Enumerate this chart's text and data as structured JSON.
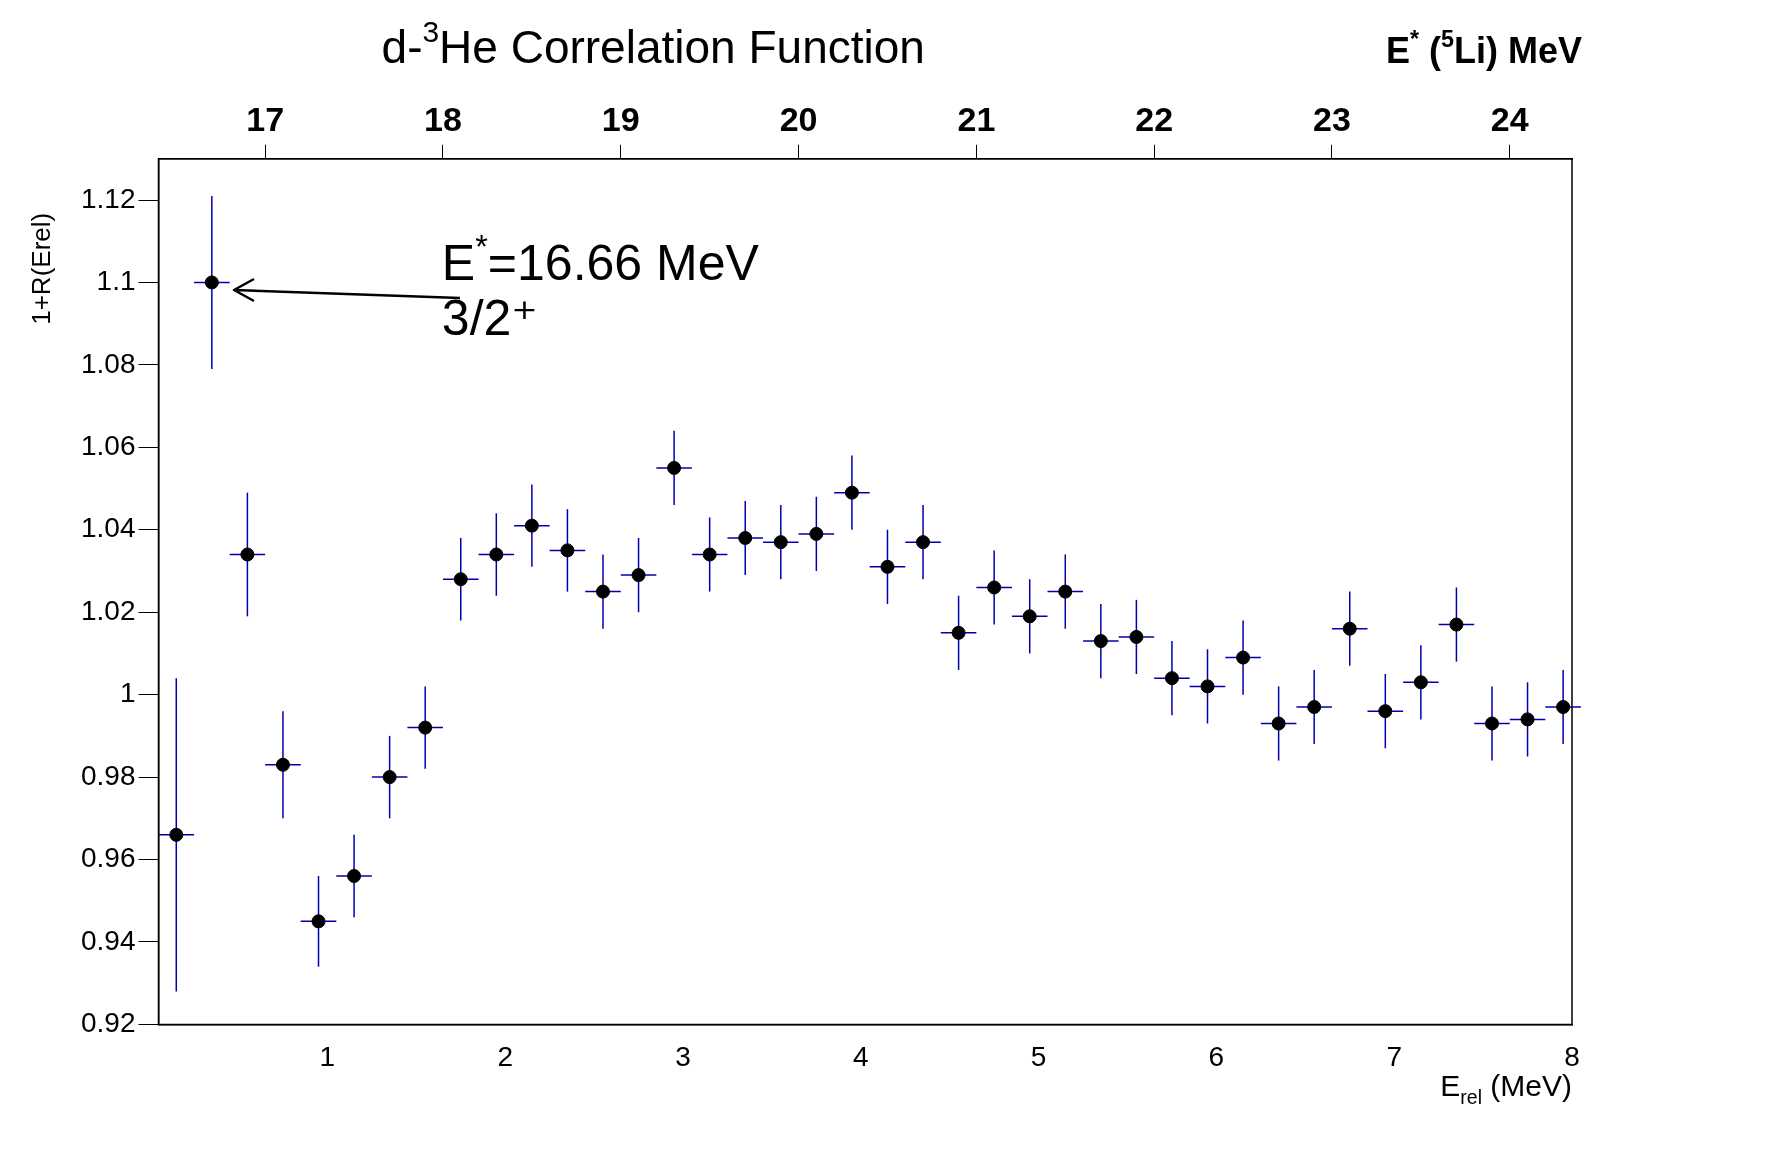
{
  "chart_data": {
    "type": "scatter",
    "title": "d-$^{3}$He Correlation Function",
    "xlabel": "E$_{rel}$ (MeV)",
    "ylabel": "1+R(Erel)",
    "x2label": "E$^{*}$ ($^{5}$Li) MeV",
    "annotations": [
      "E$^{*}$=16.66 MeV",
      "3/2⁺"
    ],
    "xlim": [
      0.05,
      8
    ],
    "xticks": [
      1,
      2,
      3,
      4,
      5,
      6,
      7,
      8
    ],
    "x2lim": [
      16.4,
      24.35
    ],
    "x2ticks": [
      17,
      18,
      19,
      20,
      21,
      22,
      23,
      24
    ],
    "ylim": [
      0.92,
      1.13
    ],
    "yticks": [
      0.92,
      0.94,
      0.96,
      0.98,
      1,
      1.02,
      1.04,
      1.06,
      1.08,
      1.1,
      1.12
    ],
    "grid": false,
    "legend": false,
    "marker": "circle",
    "series": [
      {
        "type": "scatter",
        "color": "#000000",
        "x": [
          0.15,
          0.35,
          0.55,
          0.75,
          0.95,
          1.15,
          1.35,
          1.55,
          1.75,
          1.95,
          2.15,
          2.35,
          2.55,
          2.75,
          2.95,
          3.15,
          3.35,
          3.55,
          3.75,
          3.95,
          4.15,
          4.35,
          4.55,
          4.75,
          4.95,
          5.15,
          5.35,
          5.55,
          5.75,
          5.95,
          6.15,
          6.35,
          6.55,
          6.75,
          6.95,
          7.15,
          7.35,
          7.55,
          7.75,
          7.95
        ],
        "values": [
          0.966,
          1.1,
          1.034,
          0.983,
          0.945,
          0.956,
          0.98,
          0.992,
          1.028,
          1.034,
          1.041,
          1.035,
          1.025,
          1.029,
          1.055,
          1.034,
          1.038,
          1.037,
          1.039,
          1.049,
          1.031,
          1.037,
          1.015,
          1.026,
          1.019,
          1.025,
          1.013,
          1.014,
          1.004,
          1.002,
          1.009,
          0.993,
          0.997,
          1.016,
          0.996,
          1.003,
          1.017,
          0.993,
          0.994,
          0.997
        ],
        "errors": [
          0.038,
          0.021,
          0.015,
          0.013,
          0.011,
          0.01,
          0.01,
          0.01,
          0.01,
          0.01,
          0.01,
          0.01,
          0.009,
          0.009,
          0.009,
          0.009,
          0.009,
          0.009,
          0.009,
          0.009,
          0.009,
          0.009,
          0.009,
          0.009,
          0.009,
          0.009,
          0.009,
          0.009,
          0.009,
          0.009,
          0.009,
          0.009,
          0.009,
          0.009,
          0.009,
          0.009,
          0.009,
          0.009,
          0.009,
          0.009
        ],
        "xerrors": [
          0.1,
          0.1,
          0.1,
          0.1,
          0.1,
          0.1,
          0.1,
          0.1,
          0.1,
          0.1,
          0.1,
          0.1,
          0.1,
          0.1,
          0.1,
          0.1,
          0.1,
          0.1,
          0.1,
          0.1,
          0.1,
          0.1,
          0.1,
          0.1,
          0.1,
          0.1,
          0.1,
          0.1,
          0.1,
          0.1,
          0.1,
          0.1,
          0.1,
          0.1,
          0.1,
          0.1,
          0.1,
          0.1,
          0.1,
          0.1
        ]
      }
    ]
  }
}
